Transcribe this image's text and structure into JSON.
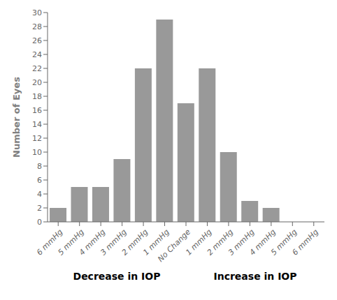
{
  "chart_data": {
    "type": "bar",
    "ylabel": "Number of Eyes",
    "categories": [
      "6 mmHg",
      "5 mmHg",
      "4 mmHg",
      "3 mmHg",
      "2 mmHg",
      "1 mmHg",
      "No Change",
      "1 mmHg",
      "2 mmHg",
      "3 mmHg",
      "4 mmHg",
      "5 mmHg",
      "6 mmHg"
    ],
    "values": [
      2,
      5,
      5,
      9,
      22,
      29,
      17,
      22,
      10,
      3,
      2,
      0,
      0
    ],
    "color": "#999999",
    "ylim": [
      0,
      30
    ],
    "yticks": [
      0,
      2,
      4,
      6,
      8,
      10,
      12,
      14,
      16,
      18,
      20,
      22,
      24,
      26,
      28,
      30
    ],
    "grid": false,
    "annotations": [
      "Decrease in IOP",
      "Increase in IOP"
    ]
  }
}
